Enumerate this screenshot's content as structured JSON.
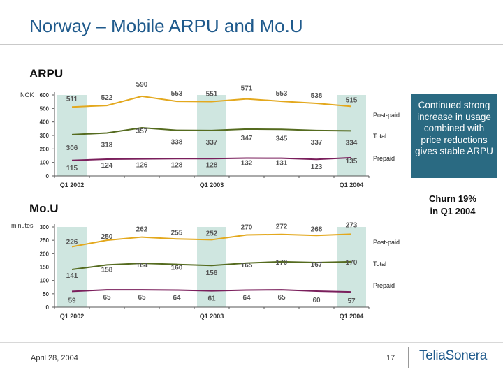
{
  "title": "Norway – Mobile ARPU and Mo.U",
  "callout": "Continued strong increase in usage combined with price reductions gives stable ARPU",
  "churn_note_line1": "Churn 19%",
  "churn_note_line2": "in Q1 2004",
  "footer": {
    "date": "April 28, 2004",
    "page": "17",
    "logo": "TeliaSonera"
  },
  "colors": {
    "postpaid": "#e3a81d",
    "total": "#556b1f",
    "prepaid": "#7a1f5c",
    "highlight": "#cfe6e0",
    "title": "#1f5a8c",
    "callout_bg": "#2a6a82"
  },
  "chart_data": [
    {
      "type": "line",
      "section_title": "ARPU",
      "ylabel": "NOK",
      "ylim": [
        0,
        600
      ],
      "yticks": [
        0,
        100,
        200,
        300,
        400,
        500,
        600
      ],
      "x_labels": {
        "0": "Q1 2002",
        "4": "Q1 2003",
        "8": "Q1 2004"
      },
      "highlighted_quarters": [
        0,
        4,
        8
      ],
      "series": [
        {
          "name": "Post-paid",
          "values": [
            511,
            522,
            590,
            553,
            551,
            571,
            553,
            538,
            515
          ]
        },
        {
          "name": "Total",
          "values": [
            306,
            318,
            357,
            338,
            337,
            347,
            345,
            337,
            334
          ]
        },
        {
          "name": "Prepaid",
          "values": [
            115,
            124,
            126,
            128,
            128,
            132,
            131,
            123,
            135
          ]
        }
      ]
    },
    {
      "type": "line",
      "section_title": "Mo.U",
      "ylabel": "minutes",
      "ylim": [
        0,
        300
      ],
      "yticks": [
        0,
        50,
        100,
        150,
        200,
        250,
        300
      ],
      "x_labels": {
        "0": "Q1 2002",
        "4": "Q1 2003",
        "8": "Q1 2004"
      },
      "highlighted_quarters": [
        0,
        4,
        8
      ],
      "series": [
        {
          "name": "Post-paid",
          "values": [
            226,
            250,
            262,
            255,
            252,
            270,
            272,
            268,
            273
          ]
        },
        {
          "name": "Total",
          "values": [
            141,
            158,
            164,
            160,
            156,
            165,
            170,
            167,
            170
          ]
        },
        {
          "name": "Prepaid",
          "values": [
            59,
            65,
            65,
            64,
            61,
            64,
            65,
            60,
            57
          ]
        }
      ]
    }
  ]
}
